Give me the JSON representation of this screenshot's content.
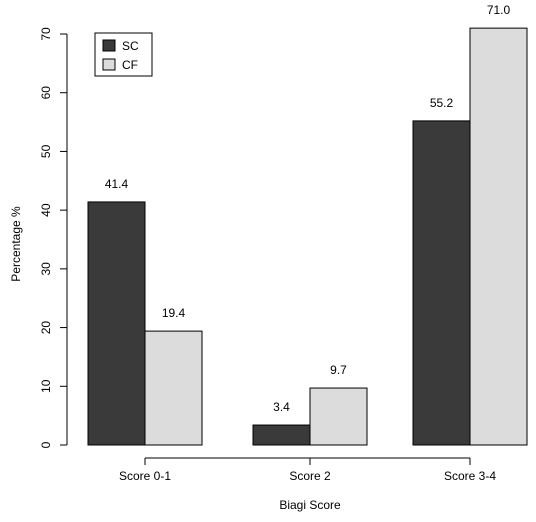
{
  "chart_data": {
    "type": "bar",
    "categories": [
      "Score 0-1",
      "Score 2",
      "Score 3-4"
    ],
    "series": [
      {
        "name": "SC",
        "values": [
          41.4,
          3.4,
          55.2
        ],
        "color": "#3a3a3a"
      },
      {
        "name": "CF",
        "values": [
          19.4,
          9.7,
          71.0
        ],
        "color": "#dcdcdc"
      }
    ],
    "value_labels": [
      [
        "41.4",
        "3.4",
        "55.2"
      ],
      [
        "19.4",
        "9.7",
        "71.0"
      ]
    ],
    "xlabel": "Biagi Score",
    "ylabel": "Percentage %",
    "ylim": [
      0,
      70
    ],
    "yticks": [
      0,
      10,
      20,
      30,
      40,
      50,
      60,
      70
    ],
    "grid": false,
    "legend_position": "top-left"
  }
}
